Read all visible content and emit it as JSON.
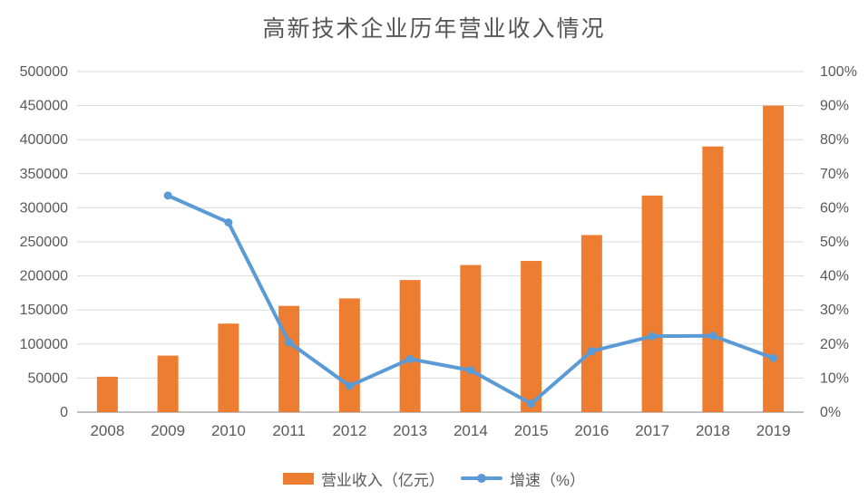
{
  "title": "高新技术企业历年营业收入情况",
  "colors": {
    "bar": "#ED7D31",
    "line": "#5B9BD5",
    "gridline": "#D9D9D9",
    "axis_line": "#BFBFBF",
    "text": "#595959"
  },
  "chart_data": {
    "type": "bar",
    "subtype": "combo-bar-line-dual-axis",
    "title": "高新技术企业历年营业收入情况",
    "categories": [
      "2008",
      "2009",
      "2010",
      "2011",
      "2012",
      "2013",
      "2014",
      "2015",
      "2016",
      "2017",
      "2018",
      "2019"
    ],
    "series": [
      {
        "name": "营业收入（亿元）",
        "type": "bar",
        "axis": "left",
        "color": "#ED7D31",
        "values": [
          52000,
          83000,
          130000,
          156000,
          167000,
          194000,
          216000,
          222000,
          260000,
          318000,
          390000,
          450000
        ]
      },
      {
        "name": "增速（%）",
        "type": "line",
        "axis": "right",
        "color": "#5B9BD5",
        "values": [
          null,
          63.6,
          55.7,
          20.5,
          7.7,
          15.6,
          12.3,
          2.5,
          17.9,
          22.3,
          22.4,
          15.9
        ]
      }
    ],
    "left_axis": {
      "min": 0,
      "max": 500000,
      "step": 50000,
      "ticks": [
        "0",
        "50000",
        "100000",
        "150000",
        "200000",
        "250000",
        "300000",
        "350000",
        "400000",
        "450000",
        "500000"
      ]
    },
    "right_axis": {
      "min": 0,
      "max": 100,
      "step": 10,
      "ticks": [
        "0%",
        "10%",
        "20%",
        "30%",
        "40%",
        "50%",
        "60%",
        "70%",
        "80%",
        "90%",
        "100%"
      ]
    },
    "grid": true,
    "legend_position": "bottom"
  },
  "legend": {
    "bar_label": "营业收入（亿元）",
    "line_label": "增速（%）"
  }
}
